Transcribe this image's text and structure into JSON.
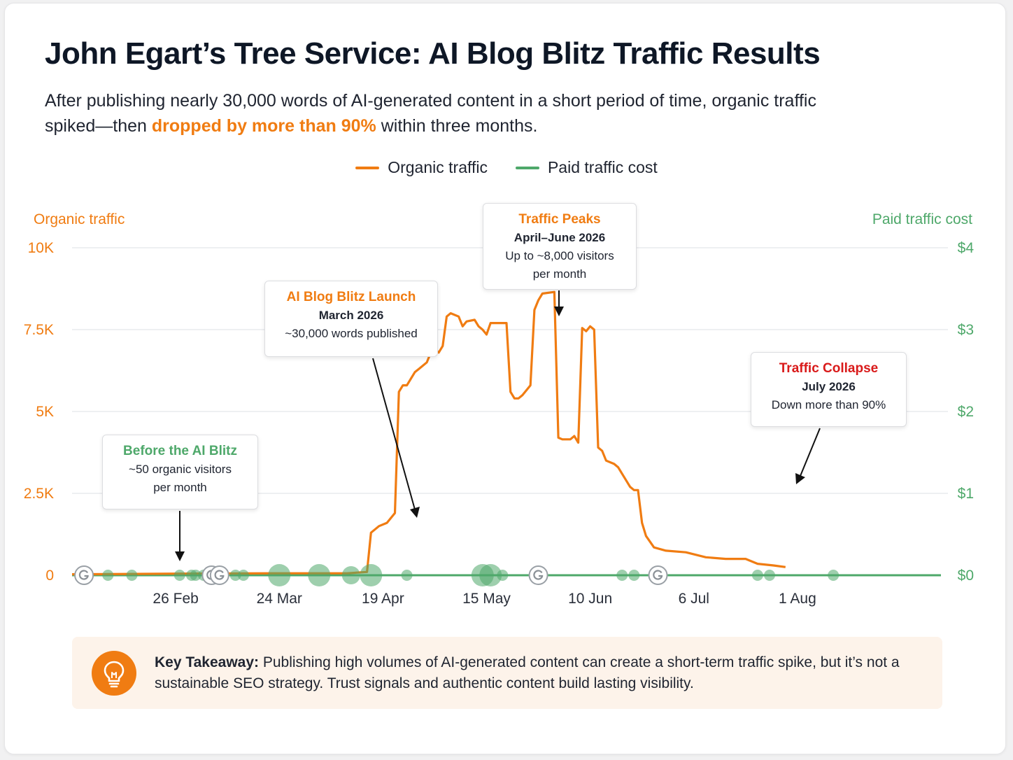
{
  "header": {
    "title": "John Egart’s Tree Service: AI Blog Blitz Traffic Results",
    "subtitle_pre": "After publishing nearly 30,000 words of AI-generated content in a short period of time, organic traffic spiked—then ",
    "subtitle_highlight": "dropped by more than 90%",
    "subtitle_post": " within three months."
  },
  "colors": {
    "organic": "#f07c12",
    "paid": "#4ea86a",
    "collapse": "#d91a1a",
    "title": "#0e1726",
    "grid": "#e4e6ea"
  },
  "legend": {
    "organic": "Organic traffic",
    "paid": "Paid traffic cost"
  },
  "chart_data": {
    "type": "line",
    "title": "",
    "x_tick_labels": [
      "26 Feb",
      "24 Mar",
      "19 Apr",
      "15 May",
      "10 Jun",
      "6 Jul",
      "1 Aug"
    ],
    "x_tick_days": [
      57,
      83,
      109,
      135,
      161,
      187,
      213
    ],
    "x_range_days": [
      31,
      249
    ],
    "left_axis": {
      "label": "Organic traffic",
      "range": [
        0,
        10000
      ],
      "ticks": [
        0,
        2500,
        5000,
        7500,
        10000
      ],
      "tick_labels": [
        "0",
        "2.5K",
        "5K",
        "7.5K",
        "10K"
      ]
    },
    "right_axis": {
      "label": "Paid traffic cost",
      "range": [
        0,
        4
      ],
      "ticks": [
        0,
        1,
        2,
        3,
        4
      ],
      "tick_labels": [
        "$0",
        "$1",
        "$2",
        "$3",
        "$4"
      ]
    },
    "series": [
      {
        "name": "Organic traffic",
        "axis": "left",
        "points": [
          [
            31,
            30
          ],
          [
            40,
            35
          ],
          [
            57,
            50
          ],
          [
            83,
            60
          ],
          [
            100,
            60
          ],
          [
            105,
            100
          ],
          [
            106,
            1300
          ],
          [
            108,
            1500
          ],
          [
            110,
            1600
          ],
          [
            112,
            1900
          ],
          [
            113,
            5600
          ],
          [
            114,
            5800
          ],
          [
            115,
            5800
          ],
          [
            117,
            6200
          ],
          [
            118,
            6300
          ],
          [
            120,
            6500
          ],
          [
            121,
            6800
          ],
          [
            122,
            6900
          ],
          [
            123,
            6800
          ],
          [
            124,
            7000
          ],
          [
            125,
            7900
          ],
          [
            126,
            8000
          ],
          [
            128,
            7900
          ],
          [
            129,
            7600
          ],
          [
            130,
            7750
          ],
          [
            132,
            7800
          ],
          [
            133,
            7600
          ],
          [
            134,
            7500
          ],
          [
            135,
            7350
          ],
          [
            136,
            7700
          ],
          [
            137,
            7700
          ],
          [
            140,
            7700
          ],
          [
            141,
            5600
          ],
          [
            142,
            5400
          ],
          [
            143,
            5400
          ],
          [
            144,
            5500
          ],
          [
            146,
            5800
          ],
          [
            147,
            8100
          ],
          [
            148,
            8400
          ],
          [
            149,
            8600
          ],
          [
            152,
            8650
          ],
          [
            153,
            4200
          ],
          [
            154,
            4150
          ],
          [
            156,
            4150
          ],
          [
            157,
            4250
          ],
          [
            158,
            4050
          ],
          [
            159,
            7550
          ],
          [
            160,
            7450
          ],
          [
            161,
            7600
          ],
          [
            162,
            7500
          ],
          [
            163,
            3900
          ],
          [
            164,
            3800
          ],
          [
            165,
            3500
          ],
          [
            167,
            3400
          ],
          [
            168,
            3300
          ],
          [
            169,
            3100
          ],
          [
            171,
            2700
          ],
          [
            172,
            2600
          ],
          [
            173,
            2600
          ],
          [
            174,
            1600
          ],
          [
            175,
            1200
          ],
          [
            177,
            850
          ],
          [
            180,
            750
          ],
          [
            185,
            700
          ],
          [
            190,
            550
          ],
          [
            195,
            500
          ],
          [
            198,
            500
          ],
          [
            200,
            500
          ],
          [
            203,
            350
          ],
          [
            207,
            300
          ],
          [
            210,
            250
          ]
        ]
      },
      {
        "name": "Paid traffic cost",
        "axis": "right",
        "values_constant": 0
      }
    ],
    "event_markers": {
      "google_updates_days": [
        34,
        66,
        68
      ],
      "google_updates_extra_days": [
        148,
        178
      ],
      "dots": [
        {
          "day": 34,
          "size": "s"
        },
        {
          "day": 40,
          "size": "s"
        },
        {
          "day": 46,
          "size": "s"
        },
        {
          "day": 58,
          "size": "s"
        },
        {
          "day": 61,
          "size": "s"
        },
        {
          "day": 62,
          "size": "s"
        },
        {
          "day": 64,
          "size": "s"
        },
        {
          "day": 72,
          "size": "s"
        },
        {
          "day": 74,
          "size": "s"
        },
        {
          "day": 83,
          "size": "l"
        },
        {
          "day": 93,
          "size": "l"
        },
        {
          "day": 101,
          "size": "m"
        },
        {
          "day": 106,
          "size": "l"
        },
        {
          "day": 115,
          "size": "s"
        },
        {
          "day": 134,
          "size": "l"
        },
        {
          "day": 136,
          "size": "l"
        },
        {
          "day": 139,
          "size": "s"
        },
        {
          "day": 169,
          "size": "s"
        },
        {
          "day": 172,
          "size": "s"
        },
        {
          "day": 203,
          "size": "s"
        },
        {
          "day": 206,
          "size": "s"
        },
        {
          "day": 222,
          "size": "s"
        }
      ]
    },
    "annotations": [
      {
        "title": "Before the AI Blitz",
        "line1": "~50 organic visitors",
        "line2": "per month"
      },
      {
        "title": "AI Blog Blitz Launch",
        "line1": "March 2026",
        "line2": "~30,000 words published"
      },
      {
        "title": "Traffic Peaks",
        "line1": "April–June 2026",
        "line2": "Up to ~8,000 visitors",
        "line3": "per month"
      },
      {
        "title": "Traffic Collapse",
        "line1": "July 2026",
        "line2": "Down more than 90%"
      }
    ]
  },
  "takeaway": {
    "icon": "lightbulb-icon",
    "label": "Key Takeaway:",
    "text": " Publishing high volumes of AI-generated content can create a short-term traffic spike, but it’s not a sustainable SEO strategy. Trust signals and authentic content build lasting visibility."
  }
}
